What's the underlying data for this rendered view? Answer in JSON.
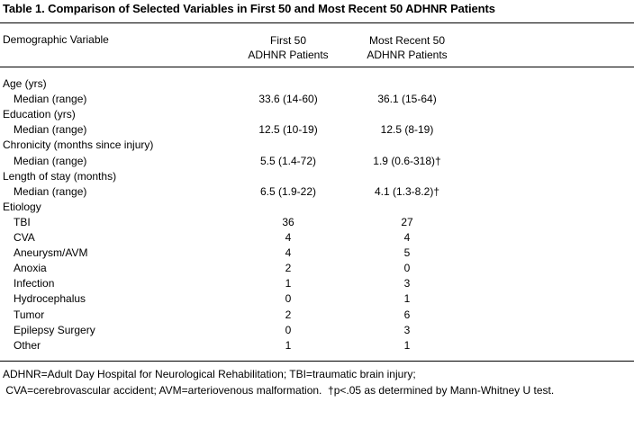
{
  "title": "Table 1. Comparison of Selected Variables in First 50 and Most Recent 50 ADHNR Patients",
  "header": {
    "variable": "Demographic Variable",
    "col1_line1": "First 50",
    "col1_line2": "ADHNR Patients",
    "col2_line1": "Most Recent 50",
    "col2_line2": "ADHNR Patients"
  },
  "rows": [
    {
      "label": "Age (yrs)",
      "indent": false,
      "c1": "",
      "c2": ""
    },
    {
      "label": "Median (range)",
      "indent": true,
      "c1": "33.6 (14-60)",
      "c2": "36.1 (15-64)"
    },
    {
      "label": "Education (yrs)",
      "indent": false,
      "c1": "",
      "c2": ""
    },
    {
      "label": "Median (range)",
      "indent": true,
      "c1": "12.5 (10-19)",
      "c2": "12.5 (8-19)"
    },
    {
      "label": "Chronicity (months since injury)",
      "indent": false,
      "c1": "",
      "c2": ""
    },
    {
      "label": "Median (range)",
      "indent": true,
      "c1": "5.5 (1.4-72)",
      "c2": "1.9 (0.6-318)†"
    },
    {
      "label": "Length of stay (months)",
      "indent": false,
      "c1": "",
      "c2": ""
    },
    {
      "label": "Median (range)",
      "indent": true,
      "c1": "6.5 (1.9-22)",
      "c2": "4.1 (1.3-8.2)†"
    },
    {
      "label": "Etiology",
      "indent": false,
      "c1": "",
      "c2": ""
    },
    {
      "label": "TBI",
      "indent": true,
      "c1": "36",
      "c2": "27"
    },
    {
      "label": "CVA",
      "indent": true,
      "c1": "4",
      "c2": "4"
    },
    {
      "label": "Aneurysm/AVM",
      "indent": true,
      "c1": "4",
      "c2": "5"
    },
    {
      "label": "Anoxia",
      "indent": true,
      "c1": "2",
      "c2": "0"
    },
    {
      "label": "Infection",
      "indent": true,
      "c1": "1",
      "c2": "3"
    },
    {
      "label": "Hydrocephalus",
      "indent": true,
      "c1": "0",
      "c2": "1"
    },
    {
      "label": "Tumor",
      "indent": true,
      "c1": "2",
      "c2": "6"
    },
    {
      "label": "Epilepsy Surgery",
      "indent": true,
      "c1": "0",
      "c2": "3"
    },
    {
      "label": "Other",
      "indent": true,
      "c1": "1",
      "c2": "1"
    }
  ],
  "footnotes": {
    "line1": "ADHNR=Adult Day Hospital for Neurological Rehabilitation; TBI=traumatic brain injury;",
    "line2": " CVA=cerebrovascular accident; AVM=arteriovenous malformation.  †p<.05 as determined by Mann-Whitney U test."
  }
}
